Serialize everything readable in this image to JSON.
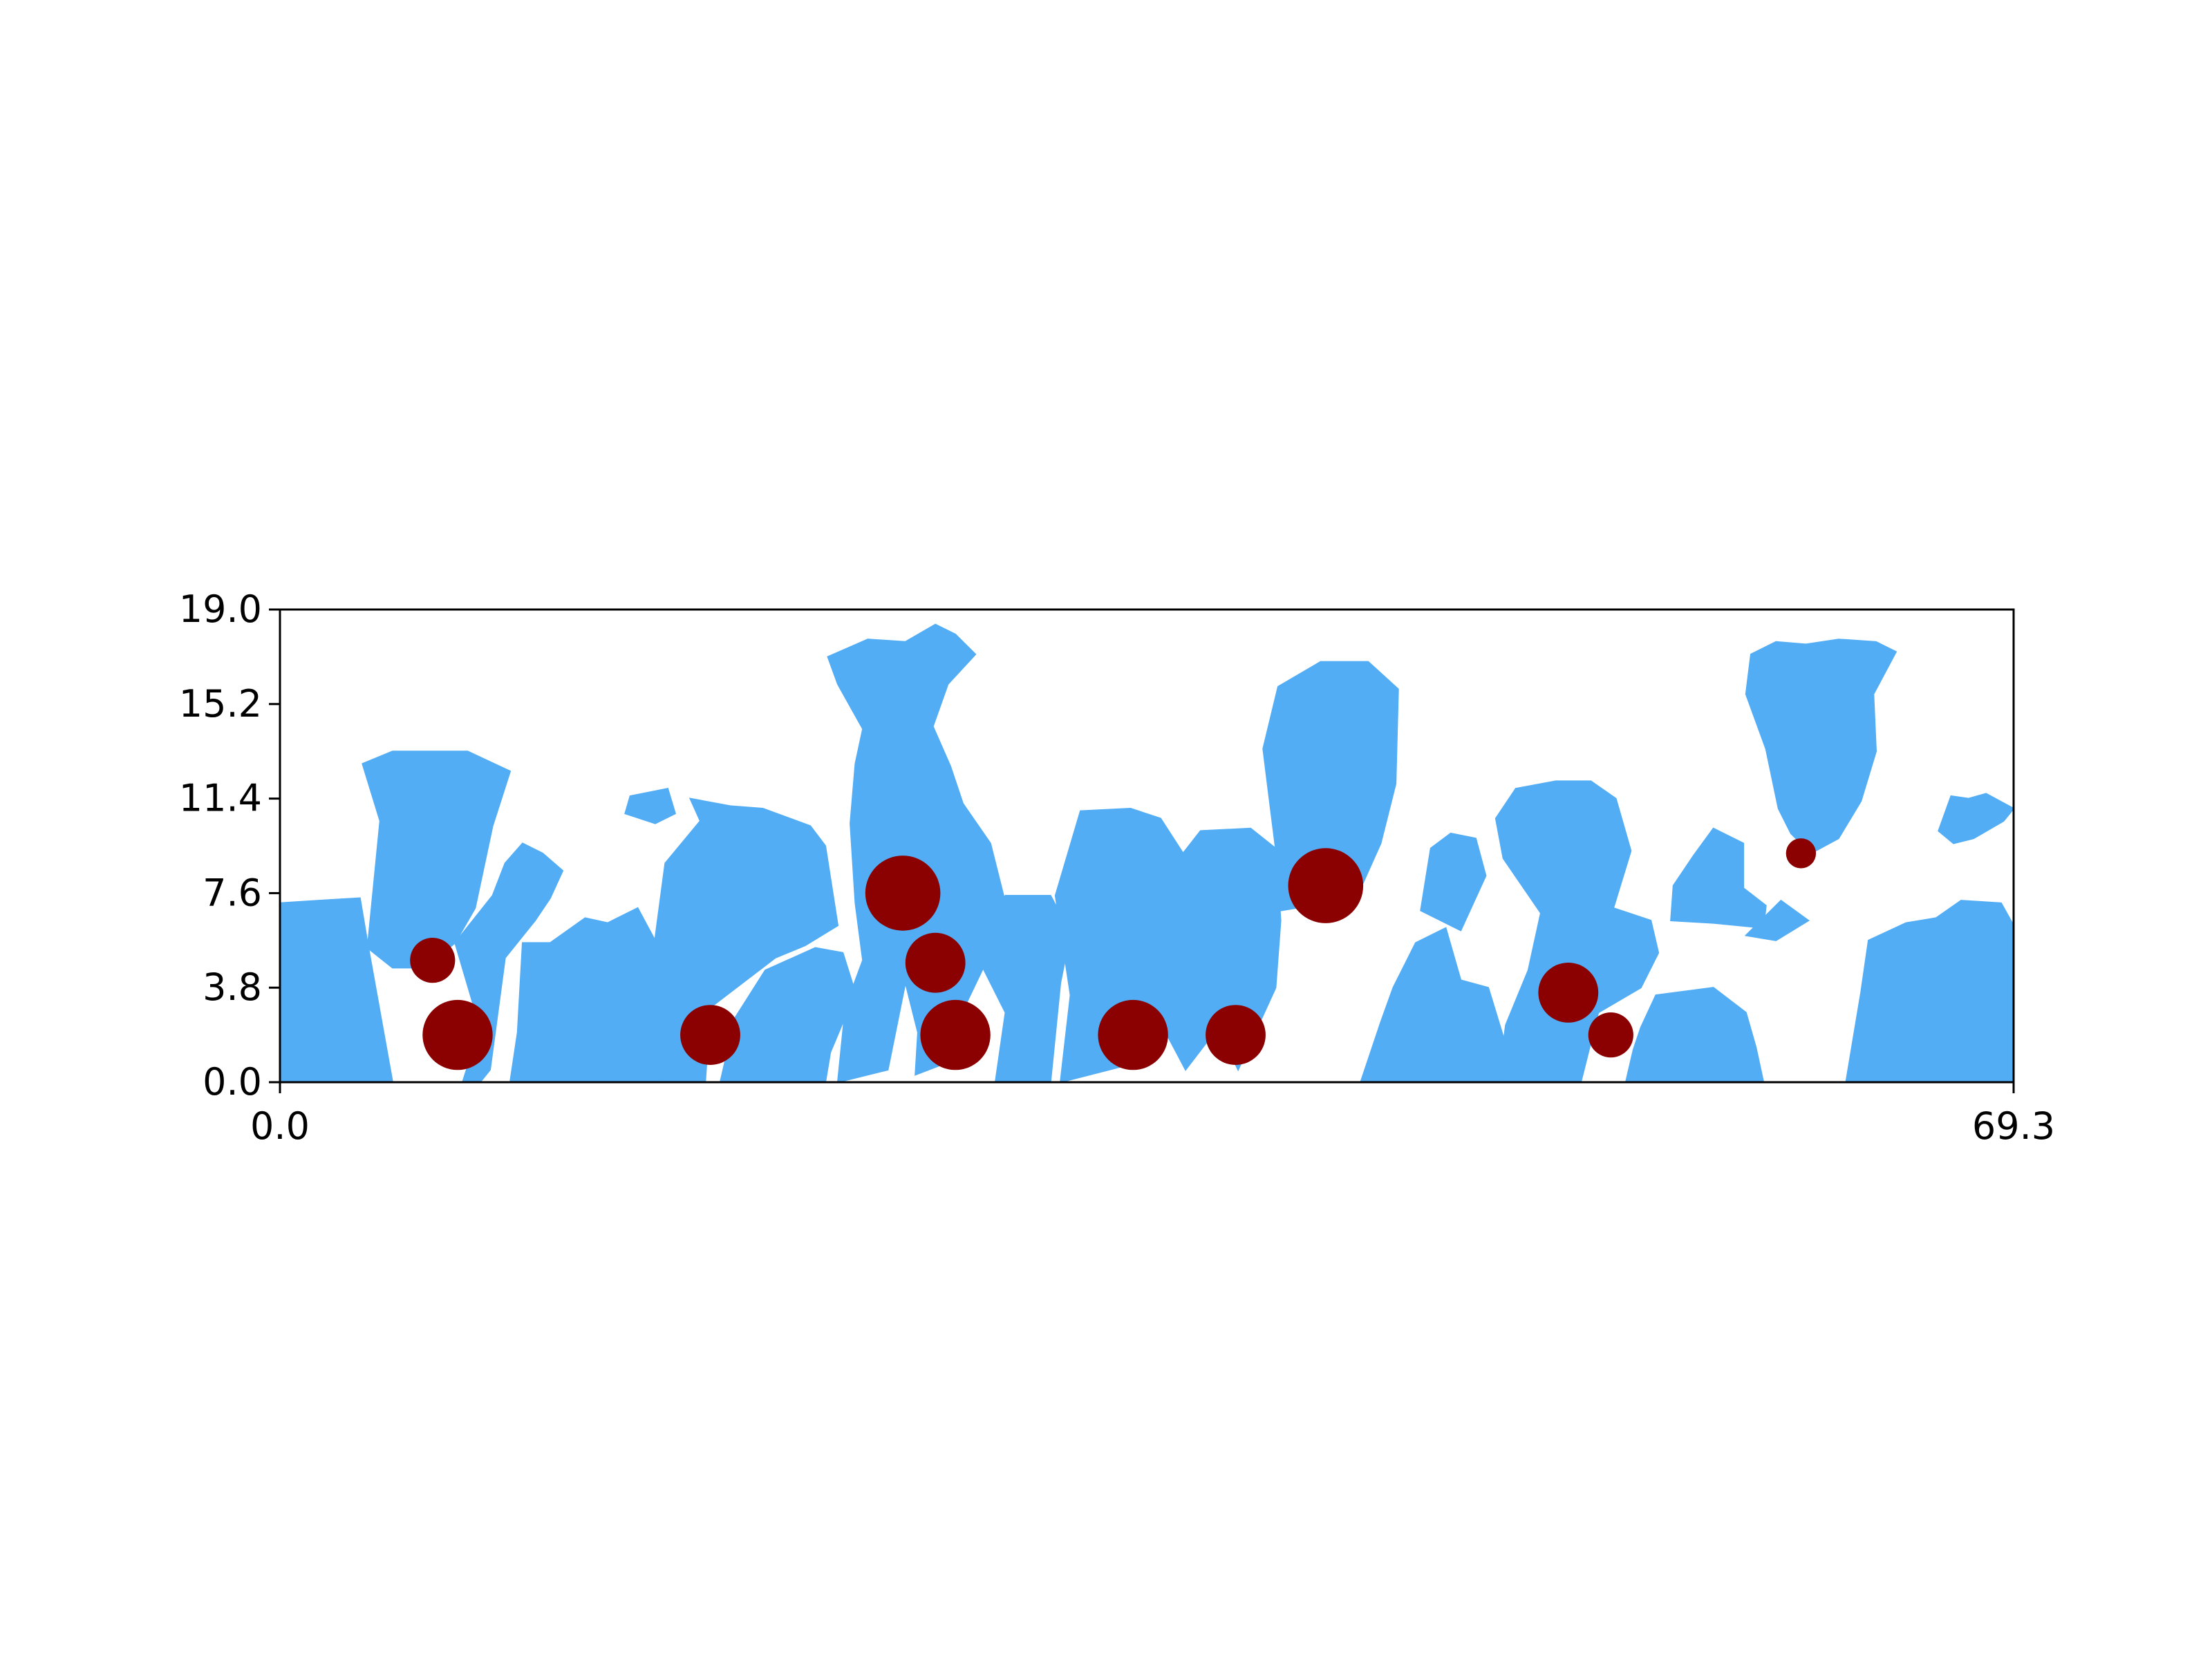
{
  "chart_data": {
    "type": "scatter",
    "title": "",
    "xlabel": "",
    "ylabel": "",
    "xlim": [
      0.0,
      69.3
    ],
    "ylim": [
      0.0,
      19.0
    ],
    "x_ticks": [
      "0.0",
      "69.3"
    ],
    "y_ticks": [
      "0.0",
      "3.8",
      "7.6",
      "11.4",
      "15.2",
      "19.0"
    ],
    "grid": false,
    "legend": "none",
    "colors": {
      "fluid": "#52adf5",
      "particle": "#8b0000",
      "background": "#ffffff",
      "axes": "#000000"
    },
    "fluid_regions": [
      {
        "polygon": [
          [
            0,
            0
          ],
          [
            0,
            7.2
          ],
          [
            1.5,
            7.3
          ],
          [
            3.2,
            7.4
          ],
          [
            3.5,
            5.6
          ],
          [
            4.5,
            0
          ]
        ]
      },
      {
        "polygon": [
          [
            3.5,
            5.4
          ],
          [
            4.0,
            10.5
          ],
          [
            3.3,
            12.8
          ],
          [
            4.5,
            13.3
          ],
          [
            7.5,
            13.3
          ],
          [
            9.2,
            12.5
          ],
          [
            8.5,
            10.3
          ],
          [
            7.8,
            7.0
          ],
          [
            7.0,
            5.6
          ],
          [
            5.8,
            4.6
          ],
          [
            4.5,
            4.6
          ]
        ]
      },
      {
        "polygon": [
          [
            7.0,
            5.6
          ],
          [
            8.5,
            7.5
          ],
          [
            9.0,
            8.8
          ],
          [
            9.7,
            9.6
          ],
          [
            10.5,
            9.2
          ],
          [
            11.3,
            8.5
          ],
          [
            10.8,
            7.4
          ],
          [
            10.2,
            6.5
          ],
          [
            9.0,
            5.0
          ],
          [
            8.4,
            0.5
          ],
          [
            8.0,
            0
          ],
          [
            7.3,
            0
          ],
          [
            8.0,
            2.2
          ]
        ]
      },
      {
        "polygon": [
          [
            9.2,
            0
          ],
          [
            9.5,
            2.0
          ],
          [
            9.7,
            5.6
          ],
          [
            10.8,
            5.6
          ],
          [
            12.2,
            6.6
          ],
          [
            13.1,
            6.4
          ],
          [
            14.3,
            7.0
          ],
          [
            15.1,
            5.5
          ],
          [
            15.6,
            3.5
          ],
          [
            15.6,
            0
          ]
        ]
      },
      {
        "polygon": [
          [
            15.2,
            0
          ],
          [
            15.5,
            2.8
          ],
          [
            15.0,
            5.8
          ],
          [
            15.4,
            8.8
          ],
          [
            16.8,
            10.5
          ],
          [
            16.4,
            11.4
          ],
          [
            18.0,
            11.1
          ],
          [
            19.3,
            11.0
          ],
          [
            21.2,
            10.3
          ],
          [
            21.8,
            9.5
          ],
          [
            22.3,
            6.3
          ],
          [
            21.0,
            5.5
          ],
          [
            19.8,
            5.0
          ],
          [
            17.2,
            3.0
          ],
          [
            17.0,
            0
          ]
        ]
      },
      {
        "polygon": [
          [
            13.8,
            10.8
          ],
          [
            14.0,
            11.5
          ],
          [
            15.5,
            11.8
          ],
          [
            15.8,
            10.8
          ],
          [
            15.0,
            10.4
          ]
        ]
      },
      {
        "polygon": [
          [
            17.6,
            0
          ],
          [
            18.2,
            2.6
          ],
          [
            19.4,
            4.5
          ],
          [
            21.4,
            5.4
          ],
          [
            22.5,
            5.2
          ],
          [
            23.0,
            3.6
          ],
          [
            22.0,
            1.2
          ],
          [
            21.8,
            0
          ]
        ]
      },
      {
        "polygon": [
          [
            22.3,
            0
          ],
          [
            22.6,
            3.0
          ],
          [
            23.3,
            4.9
          ],
          [
            23.0,
            7.2
          ],
          [
            22.8,
            10.4
          ],
          [
            23.0,
            12.8
          ],
          [
            23.3,
            14.2
          ],
          [
            22.3,
            16.0
          ],
          [
            21.9,
            17.1
          ],
          [
            23.5,
            17.8
          ],
          [
            25.0,
            17.7
          ],
          [
            26.2,
            18.4
          ],
          [
            27.0,
            18.0
          ],
          [
            27.8,
            17.2
          ],
          [
            26.7,
            16.0
          ],
          [
            26.1,
            14.3
          ],
          [
            26.8,
            12.7
          ],
          [
            27.3,
            11.2
          ],
          [
            28.4,
            9.6
          ],
          [
            29.0,
            7.2
          ],
          [
            28.4,
            5.2
          ],
          [
            27.4,
            3.1
          ],
          [
            26.7,
            0.8
          ],
          [
            25.4,
            0.3
          ],
          [
            25.5,
            2.0
          ],
          [
            25.0,
            4.0
          ],
          [
            24.3,
            0.5
          ]
        ]
      },
      {
        "polygon": [
          [
            28.0,
            4.8
          ],
          [
            28.3,
            6.6
          ],
          [
            29.0,
            7.5
          ],
          [
            30.8,
            7.5
          ],
          [
            31.6,
            6.0
          ],
          [
            31.2,
            4.0
          ],
          [
            30.8,
            0
          ],
          [
            28.6,
            0
          ],
          [
            29.0,
            2.8
          ]
        ]
      },
      {
        "polygon": [
          [
            31.2,
            0
          ],
          [
            31.6,
            3.5
          ],
          [
            31.0,
            7.5
          ],
          [
            32.0,
            10.9
          ],
          [
            34.0,
            11.0
          ],
          [
            35.2,
            10.6
          ],
          [
            36.1,
            9.2
          ],
          [
            36.8,
            10.1
          ],
          [
            38.8,
            10.2
          ],
          [
            39.8,
            9.4
          ],
          [
            40.0,
            6.5
          ],
          [
            39.8,
            3.8
          ],
          [
            38.3,
            0.5
          ],
          [
            37.5,
            2.2
          ],
          [
            36.2,
            0.5
          ],
          [
            35.2,
            2.4
          ],
          [
            34.3,
            0.8
          ]
        ]
      },
      {
        "polygon": [
          [
            39.4,
            6.8
          ],
          [
            39.9,
            8.6
          ],
          [
            39.6,
            11.0
          ],
          [
            39.3,
            13.4
          ],
          [
            39.9,
            15.9
          ],
          [
            41.6,
            16.9
          ],
          [
            43.5,
            16.9
          ],
          [
            44.7,
            15.8
          ],
          [
            44.6,
            12.0
          ],
          [
            44.0,
            9.6
          ],
          [
            43.2,
            7.8
          ],
          [
            42.2,
            7.1
          ],
          [
            40.6,
            7.0
          ]
        ]
      },
      {
        "polygon": [
          [
            43.2,
            0
          ],
          [
            44.0,
            2.4
          ],
          [
            44.5,
            3.8
          ],
          [
            45.4,
            5.6
          ],
          [
            46.6,
            6.2
          ],
          [
            47.2,
            4.1
          ],
          [
            48.3,
            3.8
          ],
          [
            49.0,
            1.5
          ],
          [
            48.7,
            0
          ]
        ]
      },
      {
        "polygon": [
          [
            45.6,
            6.9
          ],
          [
            46.0,
            9.4
          ],
          [
            46.8,
            10.0
          ],
          [
            47.8,
            9.8
          ],
          [
            48.2,
            8.3
          ],
          [
            47.2,
            6.1
          ]
        ]
      },
      {
        "polygon": [
          [
            48.7,
            0
          ],
          [
            49.0,
            2.3
          ],
          [
            49.9,
            4.5
          ],
          [
            50.4,
            6.8
          ],
          [
            48.9,
            9.0
          ],
          [
            48.6,
            10.6
          ],
          [
            49.4,
            11.8
          ],
          [
            51.0,
            12.1
          ],
          [
            52.4,
            12.1
          ],
          [
            53.4,
            11.4
          ],
          [
            54.0,
            9.3
          ],
          [
            53.3,
            7.0
          ],
          [
            54.8,
            6.5
          ],
          [
            55.1,
            5.2
          ],
          [
            54.4,
            3.8
          ],
          [
            52.7,
            2.8
          ],
          [
            52.0,
            0
          ]
        ]
      },
      {
        "polygon": [
          [
            55.6,
            6.5
          ],
          [
            55.7,
            7.9
          ],
          [
            56.5,
            9.1
          ],
          [
            57.3,
            10.2
          ],
          [
            58.5,
            9.6
          ],
          [
            58.5,
            7.8
          ],
          [
            59.4,
            7.1
          ],
          [
            59.3,
            6.2
          ],
          [
            57.3,
            6.4
          ]
        ]
      },
      {
        "polygon": [
          [
            53.8,
            0
          ],
          [
            54.1,
            1.3
          ],
          [
            54.4,
            2.2
          ],
          [
            55.0,
            3.5
          ],
          [
            57.3,
            3.8
          ],
          [
            58.6,
            2.8
          ],
          [
            59.0,
            1.4
          ],
          [
            59.3,
            0
          ]
        ]
      },
      {
        "polygon": [
          [
            58.6,
            5.9
          ],
          [
            59.8,
            5.7
          ],
          [
            61.1,
            6.5
          ],
          [
            60.0,
            7.3
          ]
        ]
      },
      {
        "polygon": [
          [
            58.8,
            17.2
          ],
          [
            58.6,
            15.6
          ],
          [
            59.4,
            13.4
          ],
          [
            59.9,
            11.0
          ],
          [
            60.4,
            10.0
          ],
          [
            61.2,
            9.2
          ],
          [
            62.3,
            9.8
          ],
          [
            63.2,
            11.3
          ],
          [
            63.8,
            13.3
          ],
          [
            63.7,
            15.6
          ],
          [
            64.6,
            17.3
          ],
          [
            63.8,
            17.7
          ],
          [
            62.3,
            17.8
          ],
          [
            61.0,
            17.6
          ],
          [
            59.8,
            17.7
          ]
        ]
      },
      {
        "polygon": [
          [
            66.3,
            10.1
          ],
          [
            66.8,
            11.5
          ],
          [
            67.5,
            11.4
          ],
          [
            68.2,
            11.6
          ],
          [
            69.3,
            11.0
          ],
          [
            68.9,
            10.5
          ],
          [
            67.7,
            9.8
          ],
          [
            66.9,
            9.6
          ]
        ]
      },
      {
        "polygon": [
          [
            62.6,
            0
          ],
          [
            63.2,
            3.6
          ],
          [
            63.5,
            5.7
          ],
          [
            65.0,
            6.4
          ],
          [
            66.2,
            6.6
          ],
          [
            67.2,
            7.3
          ],
          [
            68.8,
            7.2
          ],
          [
            69.3,
            6.3
          ],
          [
            69.3,
            0
          ]
        ]
      }
    ],
    "particles": [
      {
        "x": 6.1,
        "y": 4.9,
        "r": 0.9
      },
      {
        "x": 7.1,
        "y": 1.9,
        "r": 1.4
      },
      {
        "x": 17.2,
        "y": 1.9,
        "r": 1.2
      },
      {
        "x": 24.9,
        "y": 7.6,
        "r": 1.5
      },
      {
        "x": 26.2,
        "y": 4.8,
        "r": 1.2
      },
      {
        "x": 27.0,
        "y": 1.9,
        "r": 1.4
      },
      {
        "x": 34.1,
        "y": 1.9,
        "r": 1.4
      },
      {
        "x": 38.2,
        "y": 1.9,
        "r": 1.2
      },
      {
        "x": 41.8,
        "y": 7.9,
        "r": 1.5
      },
      {
        "x": 51.5,
        "y": 3.6,
        "r": 1.2
      },
      {
        "x": 53.2,
        "y": 1.9,
        "r": 0.9
      },
      {
        "x": 60.8,
        "y": 9.2,
        "r": 0.6
      }
    ]
  }
}
